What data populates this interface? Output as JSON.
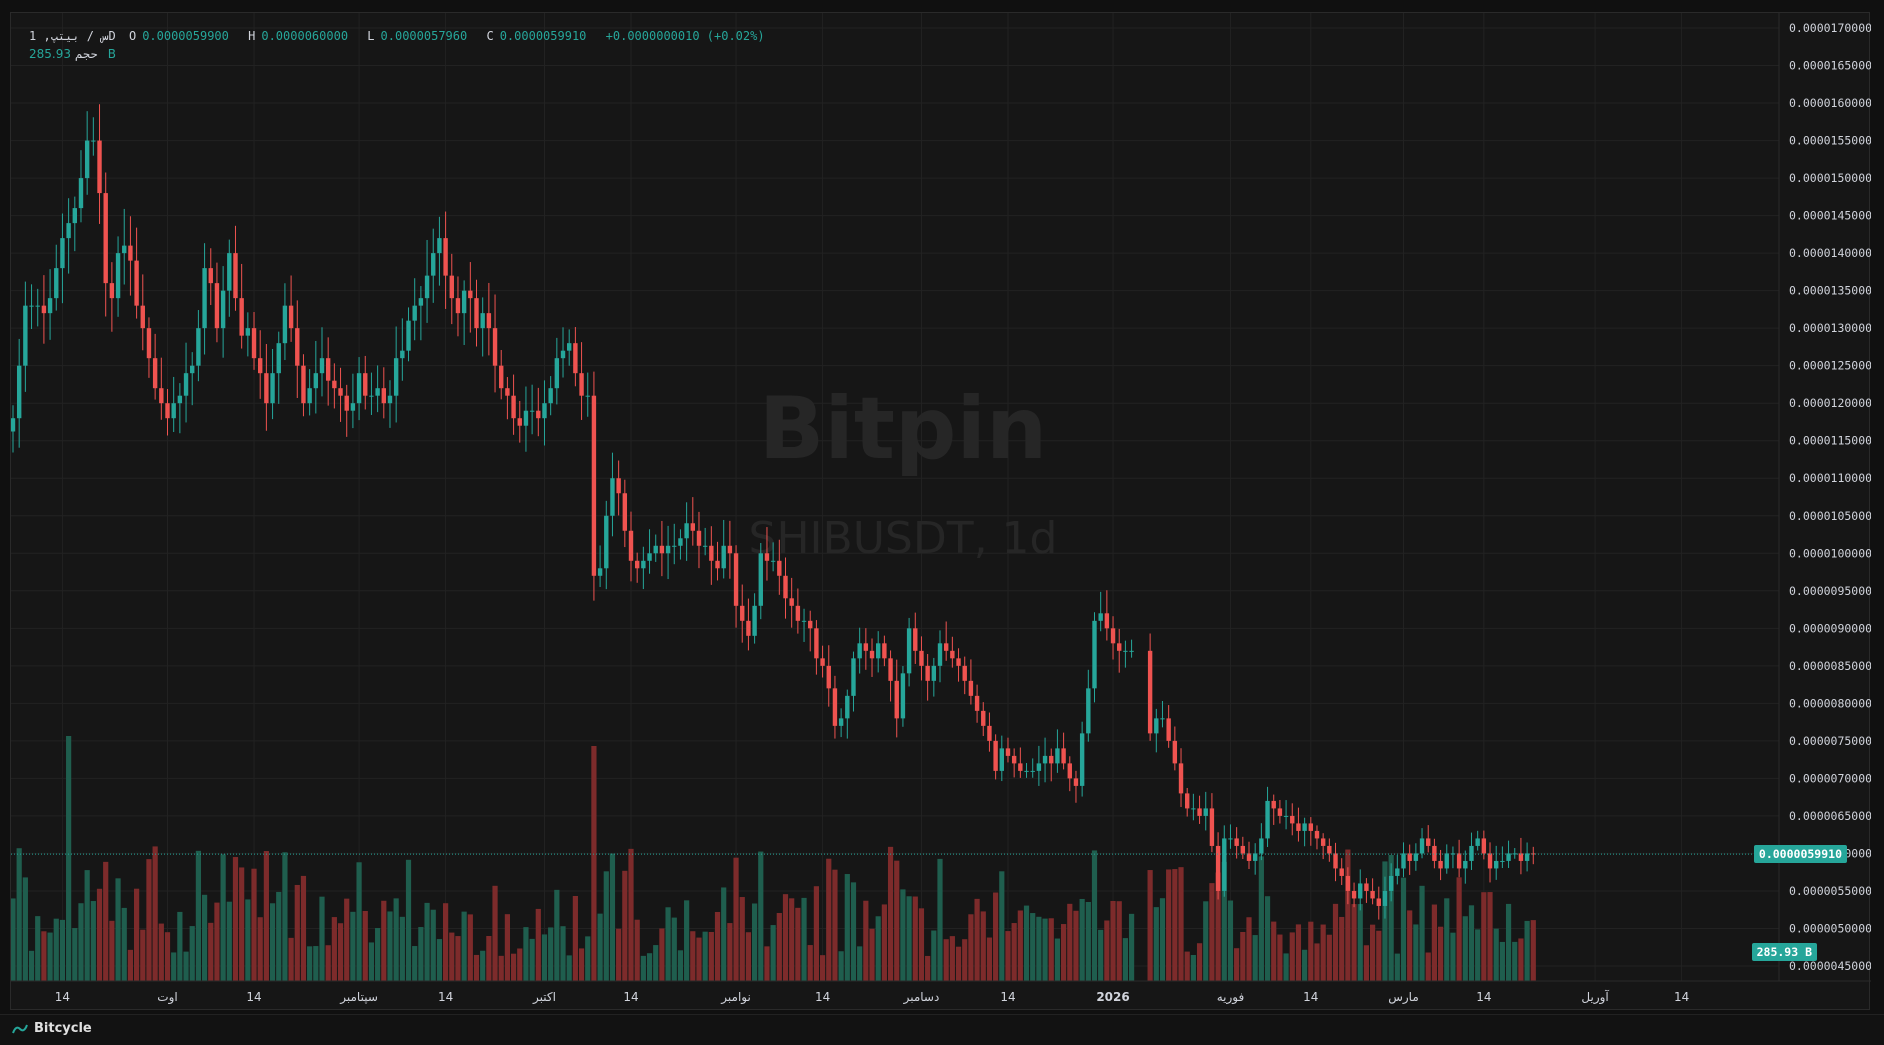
{
  "legend": {
    "symbol": "1 ,س / بيتپD",
    "open_label": "O",
    "open_value": "0.0000059900",
    "high_label": "H",
    "high_value": "0.0000060000",
    "low_label": "L",
    "low_value": "0.0000057960",
    "close_label": "C",
    "close_value": "0.0000059910",
    "change": "+0.0000000010 (+0.02%)"
  },
  "volume_legend": {
    "label": "حجم",
    "value": "285.93 B"
  },
  "watermark": {
    "brand": "Bitpin",
    "pair": "SHIBUSDT, 1d"
  },
  "current_price_tag": "0.0000059910",
  "current_volume_tag": "285.93 B",
  "brand_footer": "Bitcycle",
  "colors": {
    "up": "#26a69a",
    "down": "#ef5350",
    "background": "#161616",
    "grid": "#222222",
    "text": "#d1d4dc"
  },
  "chart_data": {
    "type": "candlestick",
    "symbol": "SHIBUSDT",
    "interval": "1d",
    "y_axis_ticks": [
      "0.0000045000",
      "0.0000050000",
      "0.0000055000",
      "0.0000060000",
      "0.0000065000",
      "0.0000070000",
      "0.0000075000",
      "0.0000080000",
      "0.0000085000",
      "0.0000090000",
      "0.0000095000",
      "0.0000100000",
      "0.0000105000",
      "0.0000110000",
      "0.0000115000",
      "0.0000120000",
      "0.0000125000",
      "0.0000130000",
      "0.0000135000",
      "0.0000140000",
      "0.0000145000",
      "0.0000150000",
      "0.0000155000",
      "0.0000160000",
      "0.0000165000",
      "0.0000170000"
    ],
    "ylim": [
      4.3e-06,
      1.72e-05
    ],
    "x_axis_ticks": [
      {
        "label": "14",
        "day": 8
      },
      {
        "label": "اوت",
        "day": 25
      },
      {
        "label": "14",
        "day": 39
      },
      {
        "label": "سپتامبر",
        "day": 56
      },
      {
        "label": "14",
        "day": 70
      },
      {
        "label": "اکتبر",
        "day": 86
      },
      {
        "label": "14",
        "day": 100
      },
      {
        "label": "نوامبر",
        "day": 117
      },
      {
        "label": "14",
        "day": 131
      },
      {
        "label": "دسامبر",
        "day": 147
      },
      {
        "label": "14",
        "day": 161
      },
      {
        "label": "2026",
        "day": 178
      },
      {
        "label": "فوریه",
        "day": 197
      },
      {
        "label": "14",
        "day": 210
      },
      {
        "label": "مارس",
        "day": 225
      },
      {
        "label": "14",
        "day": 238
      },
      {
        "label": "آوریل",
        "day": 256
      },
      {
        "label": "14",
        "day": 270
      }
    ],
    "close": [
      1.18e-05,
      1.25e-05,
      1.33e-05,
      1.33e-05,
      1.33e-05,
      1.32e-05,
      1.34e-05,
      1.38e-05,
      1.42e-05,
      1.44e-05,
      1.46e-05,
      1.5e-05,
      1.55e-05,
      1.55e-05,
      1.48e-05,
      1.36e-05,
      1.34e-05,
      1.4e-05,
      1.41e-05,
      1.39e-05,
      1.33e-05,
      1.3e-05,
      1.26e-05,
      1.22e-05,
      1.2e-05,
      1.18e-05,
      1.2e-05,
      1.21e-05,
      1.24e-05,
      1.25e-05,
      1.3e-05,
      1.38e-05,
      1.36e-05,
      1.3e-05,
      1.35e-05,
      1.4e-05,
      1.34e-05,
      1.29e-05,
      1.3e-05,
      1.26e-05,
      1.24e-05,
      1.2e-05,
      1.24e-05,
      1.28e-05,
      1.33e-05,
      1.3e-05,
      1.25e-05,
      1.2e-05,
      1.22e-05,
      1.24e-05,
      1.26e-05,
      1.23e-05,
      1.22e-05,
      1.21e-05,
      1.19e-05,
      1.2e-05,
      1.24e-05,
      1.21e-05,
      1.21e-05,
      1.22e-05,
      1.2e-05,
      1.21e-05,
      1.26e-05,
      1.27e-05,
      1.31e-05,
      1.33e-05,
      1.34e-05,
      1.37e-05,
      1.4e-05,
      1.42e-05,
      1.37e-05,
      1.34e-05,
      1.32e-05,
      1.35e-05,
      1.34e-05,
      1.3e-05,
      1.32e-05,
      1.3e-05,
      1.25e-05,
      1.22e-05,
      1.21e-05,
      1.18e-05,
      1.17e-05,
      1.19e-05,
      1.19e-05,
      1.18e-05,
      1.2e-05,
      1.22e-05,
      1.26e-05,
      1.27e-05,
      1.28e-05,
      1.24e-05,
      1.21e-05,
      1.21e-05,
      9.7e-06,
      9.8e-06,
      1.05e-05,
      1.1e-05,
      1.08e-05,
      1.03e-05,
      9.9e-06,
      9.8e-06,
      9.9e-06,
      1e-05,
      1.01e-05,
      1e-05,
      1.01e-05,
      1.01e-05,
      1.02e-05,
      1.04e-05,
      1.03e-05,
      1.01e-05,
      1.01e-05,
      9.9e-06,
      9.8e-06,
      1.01e-05,
      1e-05,
      9.3e-06,
      9.1e-06,
      8.9e-06,
      9.3e-06,
      1e-05,
      9.9e-06,
      9.9e-06,
      9.7e-06,
      9.4e-06,
      9.3e-06,
      9.1e-06,
      9.1e-06,
      9e-06,
      8.6e-06,
      8.5e-06,
      8.2e-06,
      7.7e-06,
      7.8e-06,
      8.1e-06,
      8.6e-06,
      8.8e-06,
      8.7e-06,
      8.6e-06,
      8.8e-06,
      8.6e-06,
      8.3e-06,
      7.8e-06,
      8.4e-06,
      9e-06,
      8.7e-06,
      8.5e-06,
      8.3e-06,
      8.5e-06,
      8.8e-06,
      8.7e-06,
      8.6e-06,
      8.5e-06,
      8.3e-06,
      8.1e-06,
      7.9e-06,
      7.7e-06,
      7.5e-06,
      7.1e-06,
      7.4e-06,
      7.3e-06,
      7.2e-06,
      7.1e-06,
      7.1e-06,
      7.1e-06,
      7.2e-06,
      7.3e-06,
      7.2e-06,
      7.4e-06,
      7.2e-06,
      7e-06,
      6.9e-06,
      7.6e-06,
      8.2e-06,
      9.1e-06,
      9.2e-06,
      9e-06,
      8.8e-06,
      8.7e-06,
      8.7e-06,
      8.7e-06,
      null,
      null,
      7.6e-06,
      7.8e-06,
      7.8e-06,
      7.5e-06,
      7.2e-06,
      6.8e-06,
      6.6e-06,
      6.6e-06,
      6.5e-06,
      6.6e-06,
      6.1e-06,
      5.5e-06,
      6.2e-06,
      6.2e-06,
      6.1e-06,
      6e-06,
      5.9e-06,
      6e-06,
      6.2e-06,
      6.7e-06,
      6.6e-06,
      6.5e-06,
      6.5e-06,
      6.4e-06,
      6.3e-06,
      6.4e-06,
      6.3e-06,
      6.2e-06,
      6.1e-06,
      6e-06,
      5.8e-06,
      5.7e-06,
      5.5e-06,
      5.4e-06,
      5.6e-06,
      5.5e-06,
      5.4e-06,
      5.3e-06,
      5.5e-06,
      5.7e-06,
      5.8e-06,
      6e-06,
      5.9e-06,
      6e-06,
      6.2e-06,
      6.1e-06,
      5.9e-06,
      5.8e-06,
      6e-06,
      6e-06,
      5.8e-06,
      5.9e-06,
      6.1e-06,
      6.2e-06,
      6e-06,
      5.8e-06,
      5.9e-06,
      5.9e-06,
      6e-06,
      6e-06,
      5.9e-06,
      6e-06,
      5.991e-06
    ]
  }
}
